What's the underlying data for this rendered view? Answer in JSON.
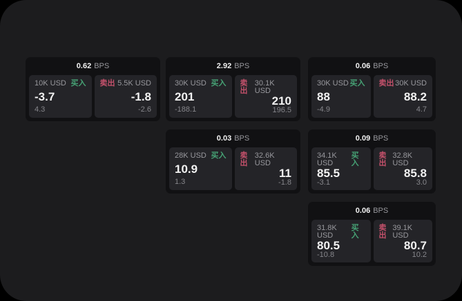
{
  "labels": {
    "buy": "买入",
    "sell": "卖出",
    "bps_unit": "BPS"
  },
  "colors": {
    "page-bg": "#000000",
    "surface-bg": "#1c1c1e",
    "card-bg": "#111113",
    "panel-bg": "#242428",
    "text-primary": "#f2f2f2",
    "text-muted": "#98989d",
    "text-sub": "#86868b",
    "buy-green": "#46a174",
    "sell-red": "#c4516b"
  },
  "cards": [
    {
      "bps": "0.62",
      "cell": {
        "row": 1,
        "col": 1
      },
      "buy": {
        "amount": "10K USD",
        "main": "-3.7",
        "sub": "4.3"
      },
      "sell": {
        "amount": "5.5K USD",
        "main": "-1.8",
        "sub": "-2.6"
      }
    },
    {
      "bps": "2.92",
      "cell": {
        "row": 1,
        "col": 2
      },
      "buy": {
        "amount": "30K USD",
        "main": "201",
        "sub": "-188.1"
      },
      "sell": {
        "amount": "30.1K USD",
        "main": "210",
        "sub": "196.5"
      }
    },
    {
      "bps": "0.06",
      "cell": {
        "row": 1,
        "col": 3
      },
      "buy": {
        "amount": "30K USD",
        "main": "88",
        "sub": "-4.9"
      },
      "sell": {
        "amount": "30K USD",
        "main": "88.2",
        "sub": "4.7"
      }
    },
    {
      "bps": "0.03",
      "cell": {
        "row": 2,
        "col": 2
      },
      "buy": {
        "amount": "28K USD",
        "main": "10.9",
        "sub": "1.3"
      },
      "sell": {
        "amount": "32.6K USD",
        "main": "11",
        "sub": "-1.8"
      }
    },
    {
      "bps": "0.09",
      "cell": {
        "row": 2,
        "col": 3
      },
      "buy": {
        "amount": "34.1K USD",
        "main": "85.5",
        "sub": "-3.1"
      },
      "sell": {
        "amount": "32.8K USD",
        "main": "85.8",
        "sub": "3.0"
      }
    },
    {
      "bps": "0.06",
      "cell": {
        "row": 3,
        "col": 3
      },
      "buy": {
        "amount": "31.8K USD",
        "main": "80.5",
        "sub": "-10.8"
      },
      "sell": {
        "amount": "39.1K USD",
        "main": "80.7",
        "sub": "10.2"
      }
    }
  ]
}
